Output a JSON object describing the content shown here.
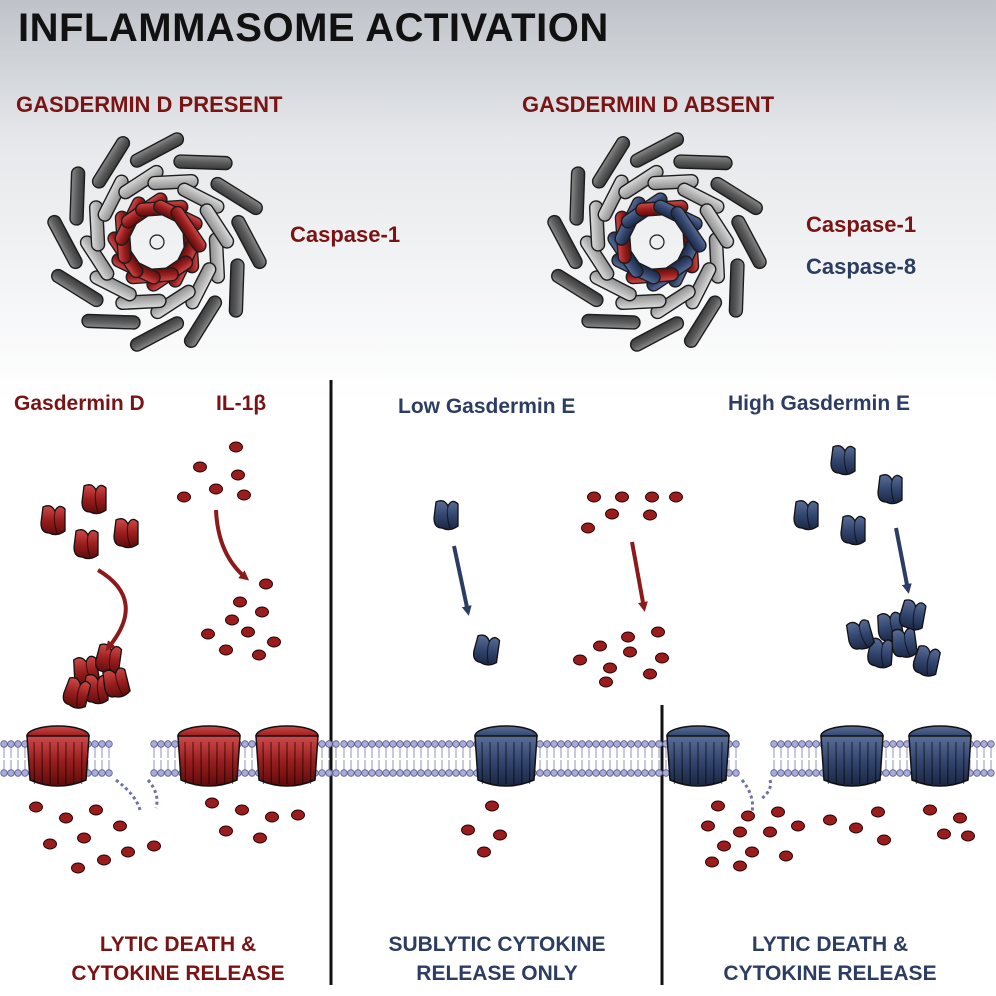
{
  "title": "INFLAMMASOME ACTIVATION",
  "conditions": {
    "present": {
      "label": "GASDERMIN D PRESENT",
      "caspases": [
        "Caspase-1"
      ]
    },
    "absent": {
      "label": "GASDERMIN D ABSENT",
      "caspases": [
        "Caspase-1",
        "Caspase-8"
      ]
    }
  },
  "panels": [
    {
      "labels": [
        "Gasdermin D",
        "IL-1β"
      ],
      "outcome": [
        "LYTIC DEATH &",
        "CYTOKINE RELEASE"
      ]
    },
    {
      "labels": [
        "Low Gasdermin E"
      ],
      "outcome": [
        "SUBLYTIC CYTOKINE",
        "RELEASE ONLY"
      ]
    },
    {
      "labels": [
        "High Gasdermin E"
      ],
      "outcome": [
        "LYTIC DEATH &",
        "CYTOKINE RELEASE"
      ]
    }
  ],
  "colors": {
    "gasdermin_d": "#8b1a1a",
    "gasdermin_e": "#2c3d63",
    "cytokine": "#9a1c1c",
    "membrane": "#8f93c4",
    "text_red": "#7a1414",
    "text_blue": "#2c3d63"
  }
}
